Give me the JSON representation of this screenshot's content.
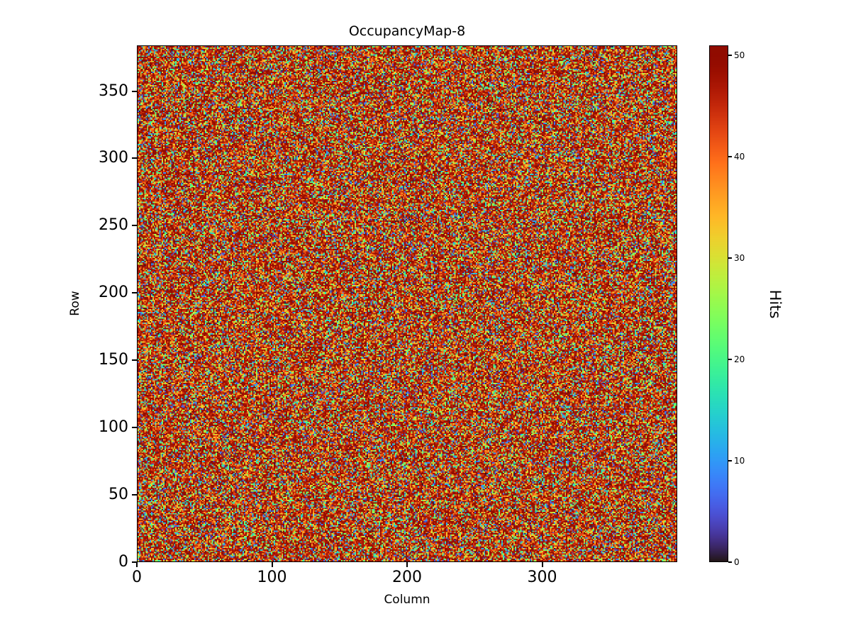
{
  "figure": {
    "background": "#ffffff"
  },
  "chart_data": {
    "type": "heatmap",
    "title": "OccupancyMap-8",
    "xlabel": "Column",
    "ylabel": "Row",
    "colorbar_label": "Hits",
    "cols": 400,
    "rows": 384,
    "xlim": [
      0,
      400
    ],
    "ylim": [
      0,
      384
    ],
    "vmin": 0,
    "vmax": 51,
    "x_ticks": [
      0,
      100,
      200,
      300
    ],
    "y_ticks": [
      0,
      50,
      100,
      150,
      200,
      250,
      300,
      350
    ],
    "colorbar_ticks": [
      0,
      10,
      20,
      30,
      40,
      50
    ],
    "colormap": "turbo",
    "legend": "none",
    "grid": false,
    "data_description": "Per-pixel random hit counts over a 400x384 sensor grid; majority of pixels saturated near the maximum (dark red) with a uniform speckle of lower-count pixels spanning the full turbo color range.",
    "noise_seed": 8,
    "distribution": {
      "high_fraction": 0.6,
      "tail_scale": 5.5
    }
  }
}
